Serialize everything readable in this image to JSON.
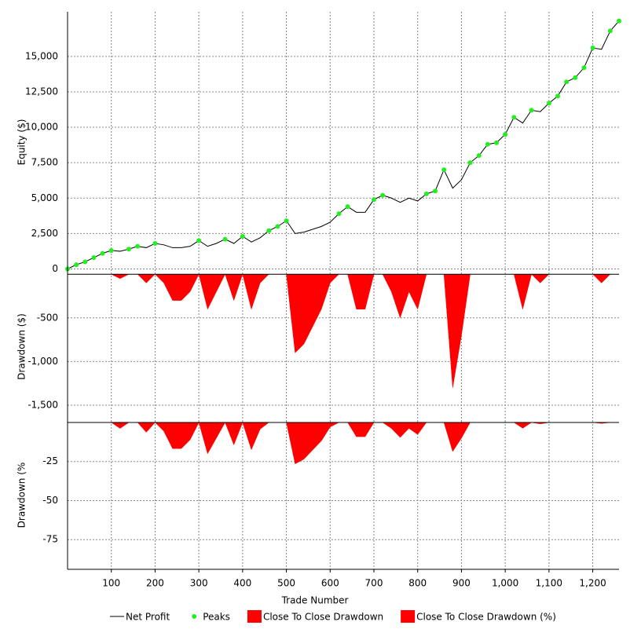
{
  "chart_data": [
    {
      "type": "line",
      "ylabel": "Equity ($)",
      "x": [
        0,
        20,
        40,
        60,
        80,
        100,
        120,
        140,
        160,
        180,
        200,
        220,
        240,
        260,
        280,
        300,
        320,
        340,
        360,
        380,
        400,
        420,
        440,
        460,
        480,
        500,
        520,
        540,
        560,
        580,
        600,
        620,
        640,
        660,
        680,
        700,
        720,
        740,
        760,
        780,
        800,
        820,
        840,
        860,
        880,
        900,
        920,
        940,
        960,
        980,
        1000,
        1020,
        1040,
        1060,
        1080,
        1100,
        1120,
        1140,
        1160,
        1180,
        1200,
        1220,
        1240,
        1260
      ],
      "series": [
        {
          "name": "Net Profit",
          "color": "#000000",
          "values": [
            0,
            300,
            500,
            800,
            1100,
            1300,
            1250,
            1400,
            1600,
            1500,
            1800,
            1700,
            1500,
            1500,
            1600,
            2000,
            1600,
            1800,
            2100,
            1800,
            2300,
            1900,
            2200,
            2700,
            3000,
            3400,
            2500,
            2600,
            2800,
            3000,
            3300,
            3900,
            4400,
            4000,
            4000,
            4900,
            5200,
            5000,
            4700,
            5000,
            4800,
            5300,
            5500,
            7000,
            5700,
            6300,
            7500,
            8000,
            8800,
            8900,
            9500,
            10700,
            10300,
            11200,
            11100,
            11700,
            12200,
            13200,
            13500,
            14200,
            15600,
            15500,
            16800,
            17500
          ]
        },
        {
          "name": "Peaks",
          "color": "#22ee22",
          "values": [
            0,
            300,
            500,
            800,
            1100,
            1300,
            null,
            1400,
            1600,
            null,
            1800,
            null,
            null,
            null,
            null,
            2000,
            null,
            null,
            2100,
            null,
            2300,
            null,
            null,
            2700,
            3000,
            3400,
            null,
            null,
            null,
            null,
            null,
            3900,
            4400,
            null,
            null,
            4900,
            5200,
            null,
            null,
            null,
            null,
            5300,
            5500,
            7000,
            null,
            null,
            7500,
            8000,
            8800,
            8900,
            9500,
            10700,
            null,
            11200,
            null,
            11700,
            12200,
            13200,
            13500,
            14200,
            15600,
            null,
            16800,
            17500
          ]
        }
      ],
      "xlim": [
        0,
        1260
      ],
      "xticks": [
        100,
        200,
        300,
        400,
        500,
        600,
        700,
        800,
        900,
        1000,
        1100,
        1200
      ],
      "ylim": [
        -250,
        18150
      ],
      "yticks": [
        0,
        {
          "value": 2500,
          "label": "2,500"
        },
        {
          "value": 5000,
          "label": "5,000"
        },
        {
          "value": 7500,
          "label": "7,500"
        },
        {
          "value": 10000,
          "label": "10,000"
        },
        {
          "value": 12500,
          "label": "12,500"
        },
        {
          "value": 15000,
          "label": "15,000"
        }
      ],
      "grid": true
    },
    {
      "type": "area",
      "ylabel": "Drawdown ($)",
      "x": [
        0,
        20,
        40,
        60,
        80,
        100,
        120,
        140,
        160,
        180,
        200,
        220,
        240,
        260,
        280,
        300,
        320,
        340,
        360,
        380,
        400,
        420,
        440,
        460,
        480,
        500,
        520,
        540,
        560,
        580,
        600,
        620,
        640,
        660,
        680,
        700,
        720,
        740,
        760,
        780,
        800,
        820,
        840,
        860,
        880,
        900,
        920,
        940,
        960,
        980,
        1000,
        1020,
        1040,
        1060,
        1080,
        1100,
        1120,
        1140,
        1160,
        1180,
        1200,
        1220,
        1240,
        1260
      ],
      "series": [
        {
          "name": "Close To Close Drawdown",
          "color": "#ff0000",
          "values": [
            0,
            0,
            0,
            0,
            0,
            0,
            -50,
            0,
            0,
            -100,
            0,
            -100,
            -300,
            -300,
            -200,
            0,
            -400,
            -200,
            0,
            -300,
            0,
            -400,
            -100,
            0,
            0,
            0,
            -900,
            -800,
            -600,
            -400,
            -100,
            0,
            0,
            -400,
            -400,
            0,
            0,
            -200,
            -500,
            -200,
            -400,
            0,
            0,
            0,
            -1300,
            -700,
            0,
            0,
            0,
            0,
            0,
            0,
            -400,
            0,
            -100,
            0,
            0,
            0,
            0,
            0,
            0,
            -100,
            0,
            0
          ]
        }
      ],
      "xlim": [
        0,
        1260
      ],
      "xticks": [
        100,
        200,
        300,
        400,
        500,
        600,
        700,
        800,
        900,
        1000,
        1100,
        1200
      ],
      "ylim": [
        -1680,
        20
      ],
      "yticks": [
        -500,
        {
          "value": -1000,
          "label": "-1,000"
        },
        {
          "value": -1500,
          "label": "-1,500"
        }
      ],
      "grid": true
    },
    {
      "type": "area",
      "ylabel": "Drawdown (%",
      "xlabel": "Trade Number",
      "x": [
        0,
        20,
        40,
        60,
        80,
        100,
        120,
        140,
        160,
        180,
        200,
        220,
        240,
        260,
        280,
        300,
        320,
        340,
        360,
        380,
        400,
        420,
        440,
        460,
        480,
        500,
        520,
        540,
        560,
        580,
        600,
        620,
        640,
        660,
        680,
        700,
        720,
        740,
        760,
        780,
        800,
        820,
        840,
        860,
        880,
        900,
        920,
        940,
        960,
        980,
        1000,
        1020,
        1040,
        1060,
        1080,
        1100,
        1120,
        1140,
        1160,
        1180,
        1200,
        1220,
        1240,
        1260
      ],
      "series": [
        {
          "name": "Close To Close Drawdown (%)",
          "color": "#ff0000",
          "values": [
            0,
            0,
            0,
            0,
            0,
            0,
            -3.8,
            0,
            0,
            -6.3,
            0,
            -5.6,
            -16.7,
            -16.7,
            -11.1,
            0,
            -20,
            -10,
            0,
            -14.3,
            0,
            -17.4,
            -4.3,
            0,
            0,
            0,
            -26.5,
            -23.5,
            -17.6,
            -11.8,
            -2.9,
            0,
            0,
            -9.1,
            -9.1,
            0,
            0,
            -3.8,
            -9.6,
            -3.8,
            -7.7,
            0,
            0,
            0,
            -18.6,
            -10,
            0,
            0,
            0,
            0,
            0,
            0,
            -3.7,
            0,
            -0.9,
            0,
            0,
            0,
            0,
            0,
            0,
            -0.6,
            0,
            0
          ]
        }
      ],
      "xlim": [
        0,
        1260
      ],
      "xticks": [
        100,
        200,
        300,
        400,
        500,
        600,
        700,
        800,
        900,
        {
          "value": 1000,
          "label": "1,000"
        },
        {
          "value": 1100,
          "label": "1,100"
        },
        {
          "value": 1200,
          "label": "1,200"
        }
      ],
      "ylim": [
        -94,
        1
      ],
      "yticks": [
        -25,
        -50,
        -75
      ],
      "grid": true
    }
  ]
}
